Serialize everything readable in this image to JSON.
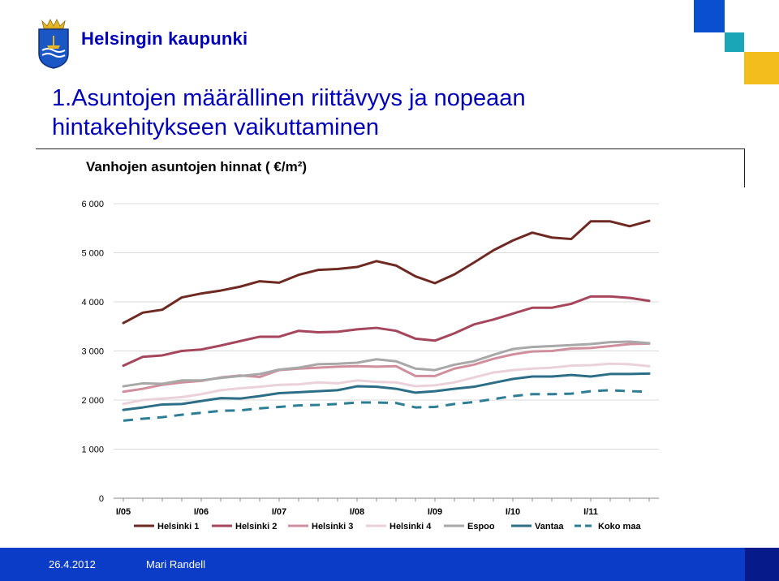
{
  "header": {
    "brand": "Helsingin kaupunki",
    "title_line1": "1.Asuntojen määrällinen riittävyys ja nopeaan",
    "title_line2": "hintakehitykseen vaikuttaminen"
  },
  "colors": {
    "brand_blue": "#0000b8",
    "square_blue": "#0a4fd0",
    "square_teal": "#1aa6b7",
    "square_yellow": "#f4bd1e"
  },
  "footer": {
    "date": "26.4.2012",
    "author": "Mari Randell"
  },
  "chart_data": {
    "type": "line",
    "title": "Vanhojen asuntojen hinnat ( €/m²)",
    "xlabel": "",
    "ylabel": "",
    "ylim": [
      0,
      6000
    ],
    "y_ticks": [
      "0",
      "1 000",
      "2 000",
      "3 000",
      "4 000",
      "5 000",
      "6 000"
    ],
    "x_tick_labels": [
      "I/05",
      "I/06",
      "I/07",
      "I/08",
      "I/09",
      "I/10",
      "I/11"
    ],
    "x_tick_indices": [
      0,
      4,
      8,
      12,
      16,
      20,
      24
    ],
    "n_quarters": 28,
    "grid": true,
    "legend": "bottom",
    "series": [
      {
        "name": "Helsinki 1",
        "color": "#6e2a22",
        "dash": false,
        "values": [
          3570,
          3780,
          3840,
          4090,
          4170,
          4230,
          4310,
          4420,
          4390,
          4550,
          4650,
          4670,
          4710,
          4830,
          4740,
          4520,
          4380,
          4560,
          4800,
          5050,
          5250,
          5410,
          5310,
          5280,
          5640,
          5640,
          5540,
          5650
        ]
      },
      {
        "name": "Helsinki 2",
        "color": "#a5465d",
        "dash": false,
        "values": [
          2700,
          2880,
          2910,
          3000,
          3030,
          3110,
          3200,
          3290,
          3290,
          3410,
          3380,
          3390,
          3440,
          3470,
          3410,
          3250,
          3210,
          3360,
          3540,
          3640,
          3760,
          3880,
          3880,
          3960,
          4110,
          4110,
          4080,
          4020
        ]
      },
      {
        "name": "Helsinki 3",
        "color": "#cf8f9e",
        "dash": false,
        "values": [
          2170,
          2230,
          2310,
          2360,
          2390,
          2460,
          2500,
          2470,
          2610,
          2640,
          2660,
          2680,
          2690,
          2680,
          2690,
          2490,
          2490,
          2640,
          2720,
          2840,
          2930,
          2990,
          3000,
          3050,
          3060,
          3100,
          3140,
          3150
        ]
      },
      {
        "name": "Helsinki 4",
        "color": "#ebd1d9",
        "dash": false,
        "values": [
          1920,
          2000,
          2030,
          2060,
          2120,
          2200,
          2240,
          2270,
          2310,
          2320,
          2360,
          2340,
          2400,
          2370,
          2360,
          2280,
          2300,
          2360,
          2460,
          2560,
          2610,
          2640,
          2660,
          2700,
          2710,
          2740,
          2730,
          2690
        ]
      },
      {
        "name": "Espoo",
        "color": "#a8a8a8",
        "dash": false,
        "values": [
          2280,
          2340,
          2330,
          2400,
          2400,
          2450,
          2490,
          2530,
          2620,
          2660,
          2730,
          2740,
          2760,
          2830,
          2790,
          2640,
          2610,
          2720,
          2790,
          2920,
          3040,
          3080,
          3100,
          3120,
          3140,
          3180,
          3190,
          3160
        ]
      },
      {
        "name": "Vantaa",
        "color": "#2b6e86",
        "dash": false,
        "values": [
          1800,
          1850,
          1910,
          1920,
          1980,
          2040,
          2030,
          2080,
          2140,
          2160,
          2180,
          2200,
          2280,
          2270,
          2230,
          2150,
          2180,
          2230,
          2270,
          2350,
          2430,
          2480,
          2480,
          2510,
          2480,
          2530,
          2530,
          2540
        ]
      },
      {
        "name": "Koko maa",
        "color": "#2d7d94",
        "dash": true,
        "values": [
          1580,
          1620,
          1650,
          1700,
          1740,
          1780,
          1790,
          1830,
          1860,
          1890,
          1900,
          1920,
          1950,
          1950,
          1940,
          1850,
          1860,
          1920,
          1960,
          2020,
          2080,
          2120,
          2120,
          2130,
          2180,
          2200,
          2180,
          2170
        ]
      }
    ]
  }
}
